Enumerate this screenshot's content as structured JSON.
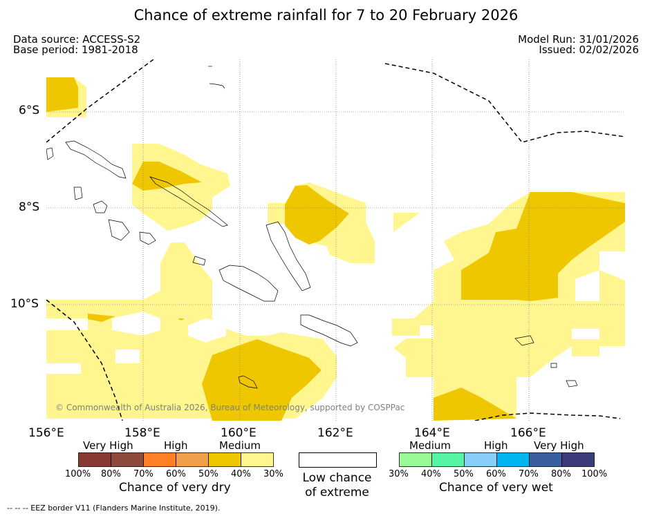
{
  "title": "Chance of extreme rainfall for 7 to 20 February 2026",
  "header": {
    "data_source": "Data source: ACCESS-S2",
    "base_period": "Base period: 1981-2018",
    "model_run": "Model Run: 31/01/2026",
    "issued": "Issued: 02/02/2026"
  },
  "map": {
    "lat_labels": [
      "6°S",
      "8°S",
      "10°S"
    ],
    "lon_labels": [
      "156°E",
      "158°E",
      "160°E",
      "162°E",
      "164°E",
      "166°E"
    ],
    "copyright": "© Commonwealth of Australia 2026, Bureau of Meteorology, supported by COSPPac"
  },
  "legend": {
    "dry": {
      "categories": [
        "Very High",
        "High",
        "Medium"
      ],
      "colors": [
        "#8b3a33",
        "#8e4b3b",
        "#ff7f27",
        "#f0a04b",
        "#efc700",
        "#fff68f"
      ],
      "ticks": [
        "100%",
        "80%",
        "70%",
        "60%",
        "50%",
        "40%",
        "30%"
      ],
      "caption": "Chance of very dry"
    },
    "low": {
      "label": "Low chance of extreme"
    },
    "wet": {
      "categories": [
        "Medium",
        "High",
        "Very High"
      ],
      "colors": [
        "#98fb98",
        "#56f5a5",
        "#87cefa",
        "#00b4f0",
        "#3a5f9f",
        "#3b3a7a"
      ],
      "ticks": [
        "30%",
        "40%",
        "50%",
        "60%",
        "70%",
        "80%",
        "100%"
      ],
      "caption": "Chance of very wet"
    }
  },
  "footer": {
    "eez": "--  --  -- EEZ border V11 (Flanders Marine Institute, 2019)."
  }
}
